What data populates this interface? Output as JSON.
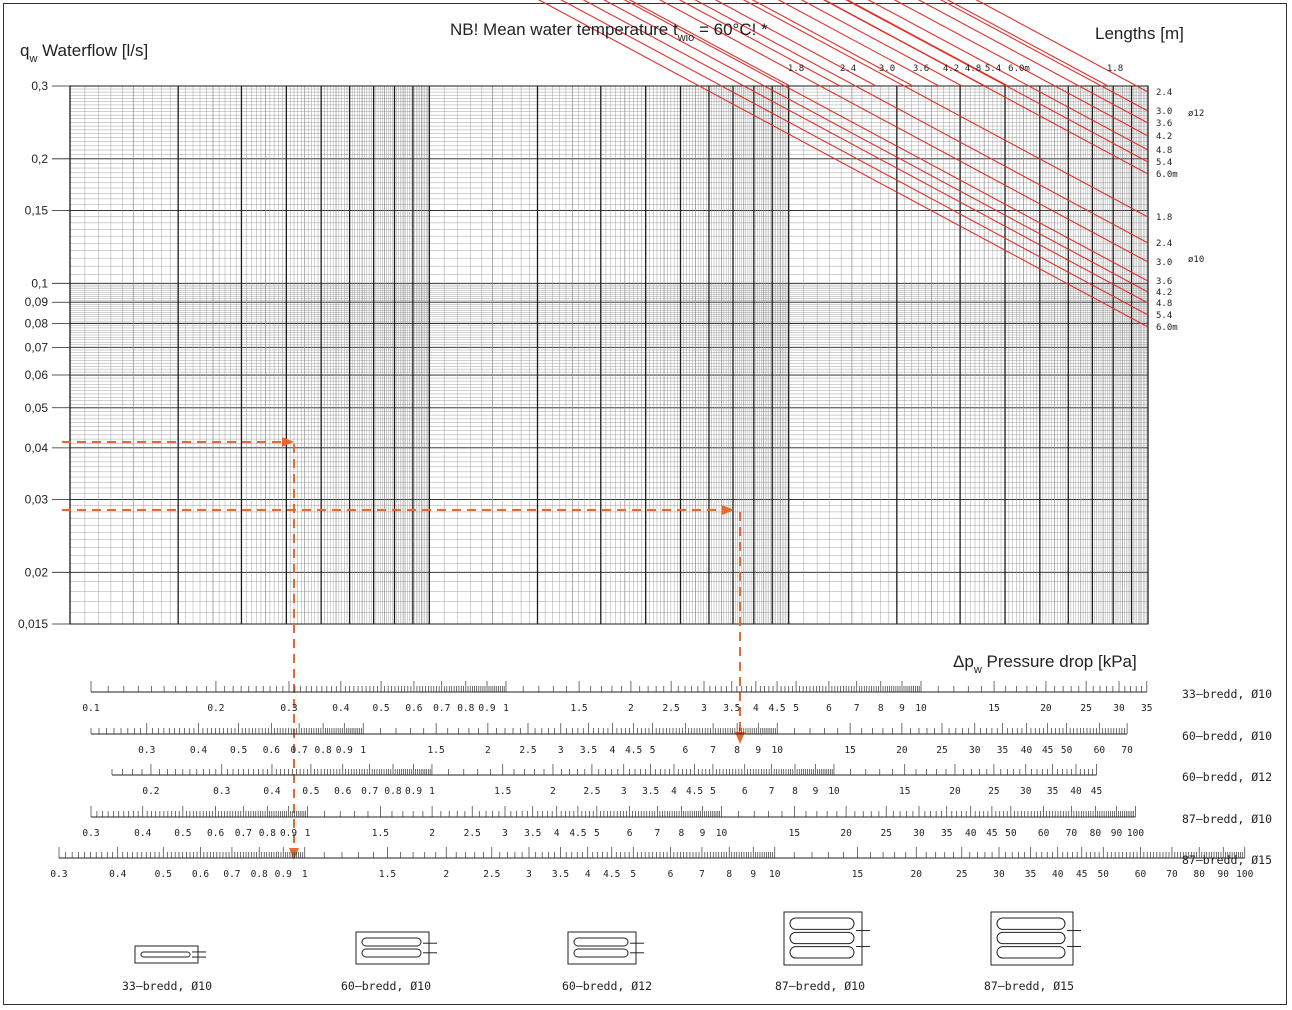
{
  "header": {
    "title_main": "NB! Mean water temperature t",
    "title_sub": "wio",
    "title_end": " = 60°C! *",
    "ylabel_q": "q",
    "ylabel_w": "w",
    "ylabel_rest": " Waterflow [l/s]",
    "lengths_label": "Lengths [m]",
    "xlabel_dp": "Δp",
    "xlabel_w": "w",
    "xlabel_rest": " Pressure drop [kPa]"
  },
  "chart_data": {
    "type": "line",
    "yscale": "log",
    "ylim": [
      0.015,
      0.3
    ],
    "y_ticks": [
      "0,3",
      "0,2",
      "0,15",
      "0,1",
      "0,09",
      "0,08",
      "0,07",
      "0,06",
      "0,05",
      "0,04",
      "0,03",
      "0,02",
      "0,015"
    ],
    "top_length_labels": [
      "1.8",
      "2.4",
      "3.0",
      "3.6",
      "4.2",
      "4.8",
      "5.4",
      "6.0m",
      "1.8"
    ],
    "groups": [
      {
        "name": "ø12",
        "lengths": [
          "2.4",
          "3.0",
          "3.6",
          "4.2",
          "4.8",
          "5.4",
          "6.0m"
        ]
      },
      {
        "name": "ø10",
        "lengths": [
          "1.8",
          "2.4",
          "3.0",
          "3.6",
          "4.2",
          "4.8",
          "5.4",
          "6.0m"
        ]
      }
    ],
    "examples": [
      {
        "q": 0.041,
        "dp": 0.33,
        "scale": "33-bredd, Ø10",
        "result": "1.1 kPa on 87-bredd, Ø15"
      },
      {
        "q": 0.028,
        "dp": 3.6,
        "scale": "33-bredd, Ø10",
        "result": "7.5 kPa on 60-bredd, Ø10"
      }
    ]
  },
  "scales": [
    {
      "label": "33–bredd,  Ø10",
      "ticks": [
        "0.1",
        "0.2",
        "0.3",
        "0.4",
        "0.5",
        "0.6",
        "0.7",
        "0.8",
        "0.9",
        "1",
        "1.5",
        "2",
        "2.5",
        "3",
        "3.5",
        "4",
        "4.5",
        "5",
        "6",
        "7",
        "8",
        "9",
        "10",
        "15",
        "20",
        "25",
        "30",
        "35"
      ]
    },
    {
      "label": "60–bredd,  Ø10",
      "ticks": [
        "0.3",
        "0.4",
        "0.5",
        "0.6",
        "0.7",
        "0.8",
        "0.9",
        "1",
        "1.5",
        "2",
        "2.5",
        "3",
        "3.5",
        "4",
        "4.5",
        "5",
        "6",
        "7",
        "8",
        "9",
        "10",
        "15",
        "20",
        "25",
        "30",
        "35",
        "40",
        "45",
        "50",
        "60",
        "70"
      ]
    },
    {
      "label": "60–bredd,  Ø12",
      "ticks": [
        "0.2",
        "0.3",
        "0.4",
        "0.5",
        "0.6",
        "0.7",
        "0.8",
        "0.9",
        "1",
        "1.5",
        "2",
        "2.5",
        "3",
        "3.5",
        "4",
        "4.5",
        "5",
        "6",
        "7",
        "8",
        "9",
        "10",
        "15",
        "20",
        "25",
        "30",
        "35",
        "40",
        "45"
      ]
    },
    {
      "label": "87–bredd,  Ø10",
      "ticks": [
        "0.3",
        "0.4",
        "0.5",
        "0.6",
        "0.7",
        "0.8",
        "0.9",
        "1",
        "1.5",
        "2",
        "2.5",
        "3",
        "3.5",
        "4",
        "4.5",
        "5",
        "6",
        "7",
        "8",
        "9",
        "10",
        "15",
        "20",
        "25",
        "30",
        "35",
        "40",
        "45",
        "50",
        "60",
        "70",
        "80",
        "90",
        "100"
      ]
    },
    {
      "label": "87–bredd,  Ø15",
      "ticks": [
        "0.3",
        "0.4",
        "0.5",
        "0.6",
        "0.7",
        "0.8",
        "0.9",
        "1",
        "1.5",
        "2",
        "2.5",
        "3",
        "3.5",
        "4",
        "4.5",
        "5",
        "6",
        "7",
        "8",
        "9",
        "10",
        "15",
        "20",
        "25",
        "30",
        "35",
        "40",
        "45",
        "50",
        "60",
        "70",
        "80",
        "90",
        "100"
      ]
    }
  ],
  "legend_icons": [
    {
      "label": "33–bredd,  Ø10",
      "loops": 1
    },
    {
      "label": "60–bredd,  Ø10",
      "loops": 2
    },
    {
      "label": "60–bredd,  Ø12",
      "loops": 2
    },
    {
      "label": "87–bredd,  Ø10",
      "loops": 3
    },
    {
      "label": "87–bredd,  Ø15",
      "loops": 3
    }
  ],
  "colors": {
    "curve": "#e0302a",
    "arrow": "#e8692e",
    "grid_fine": "#8a8a8a",
    "grid_major": "#1a1a1a"
  }
}
